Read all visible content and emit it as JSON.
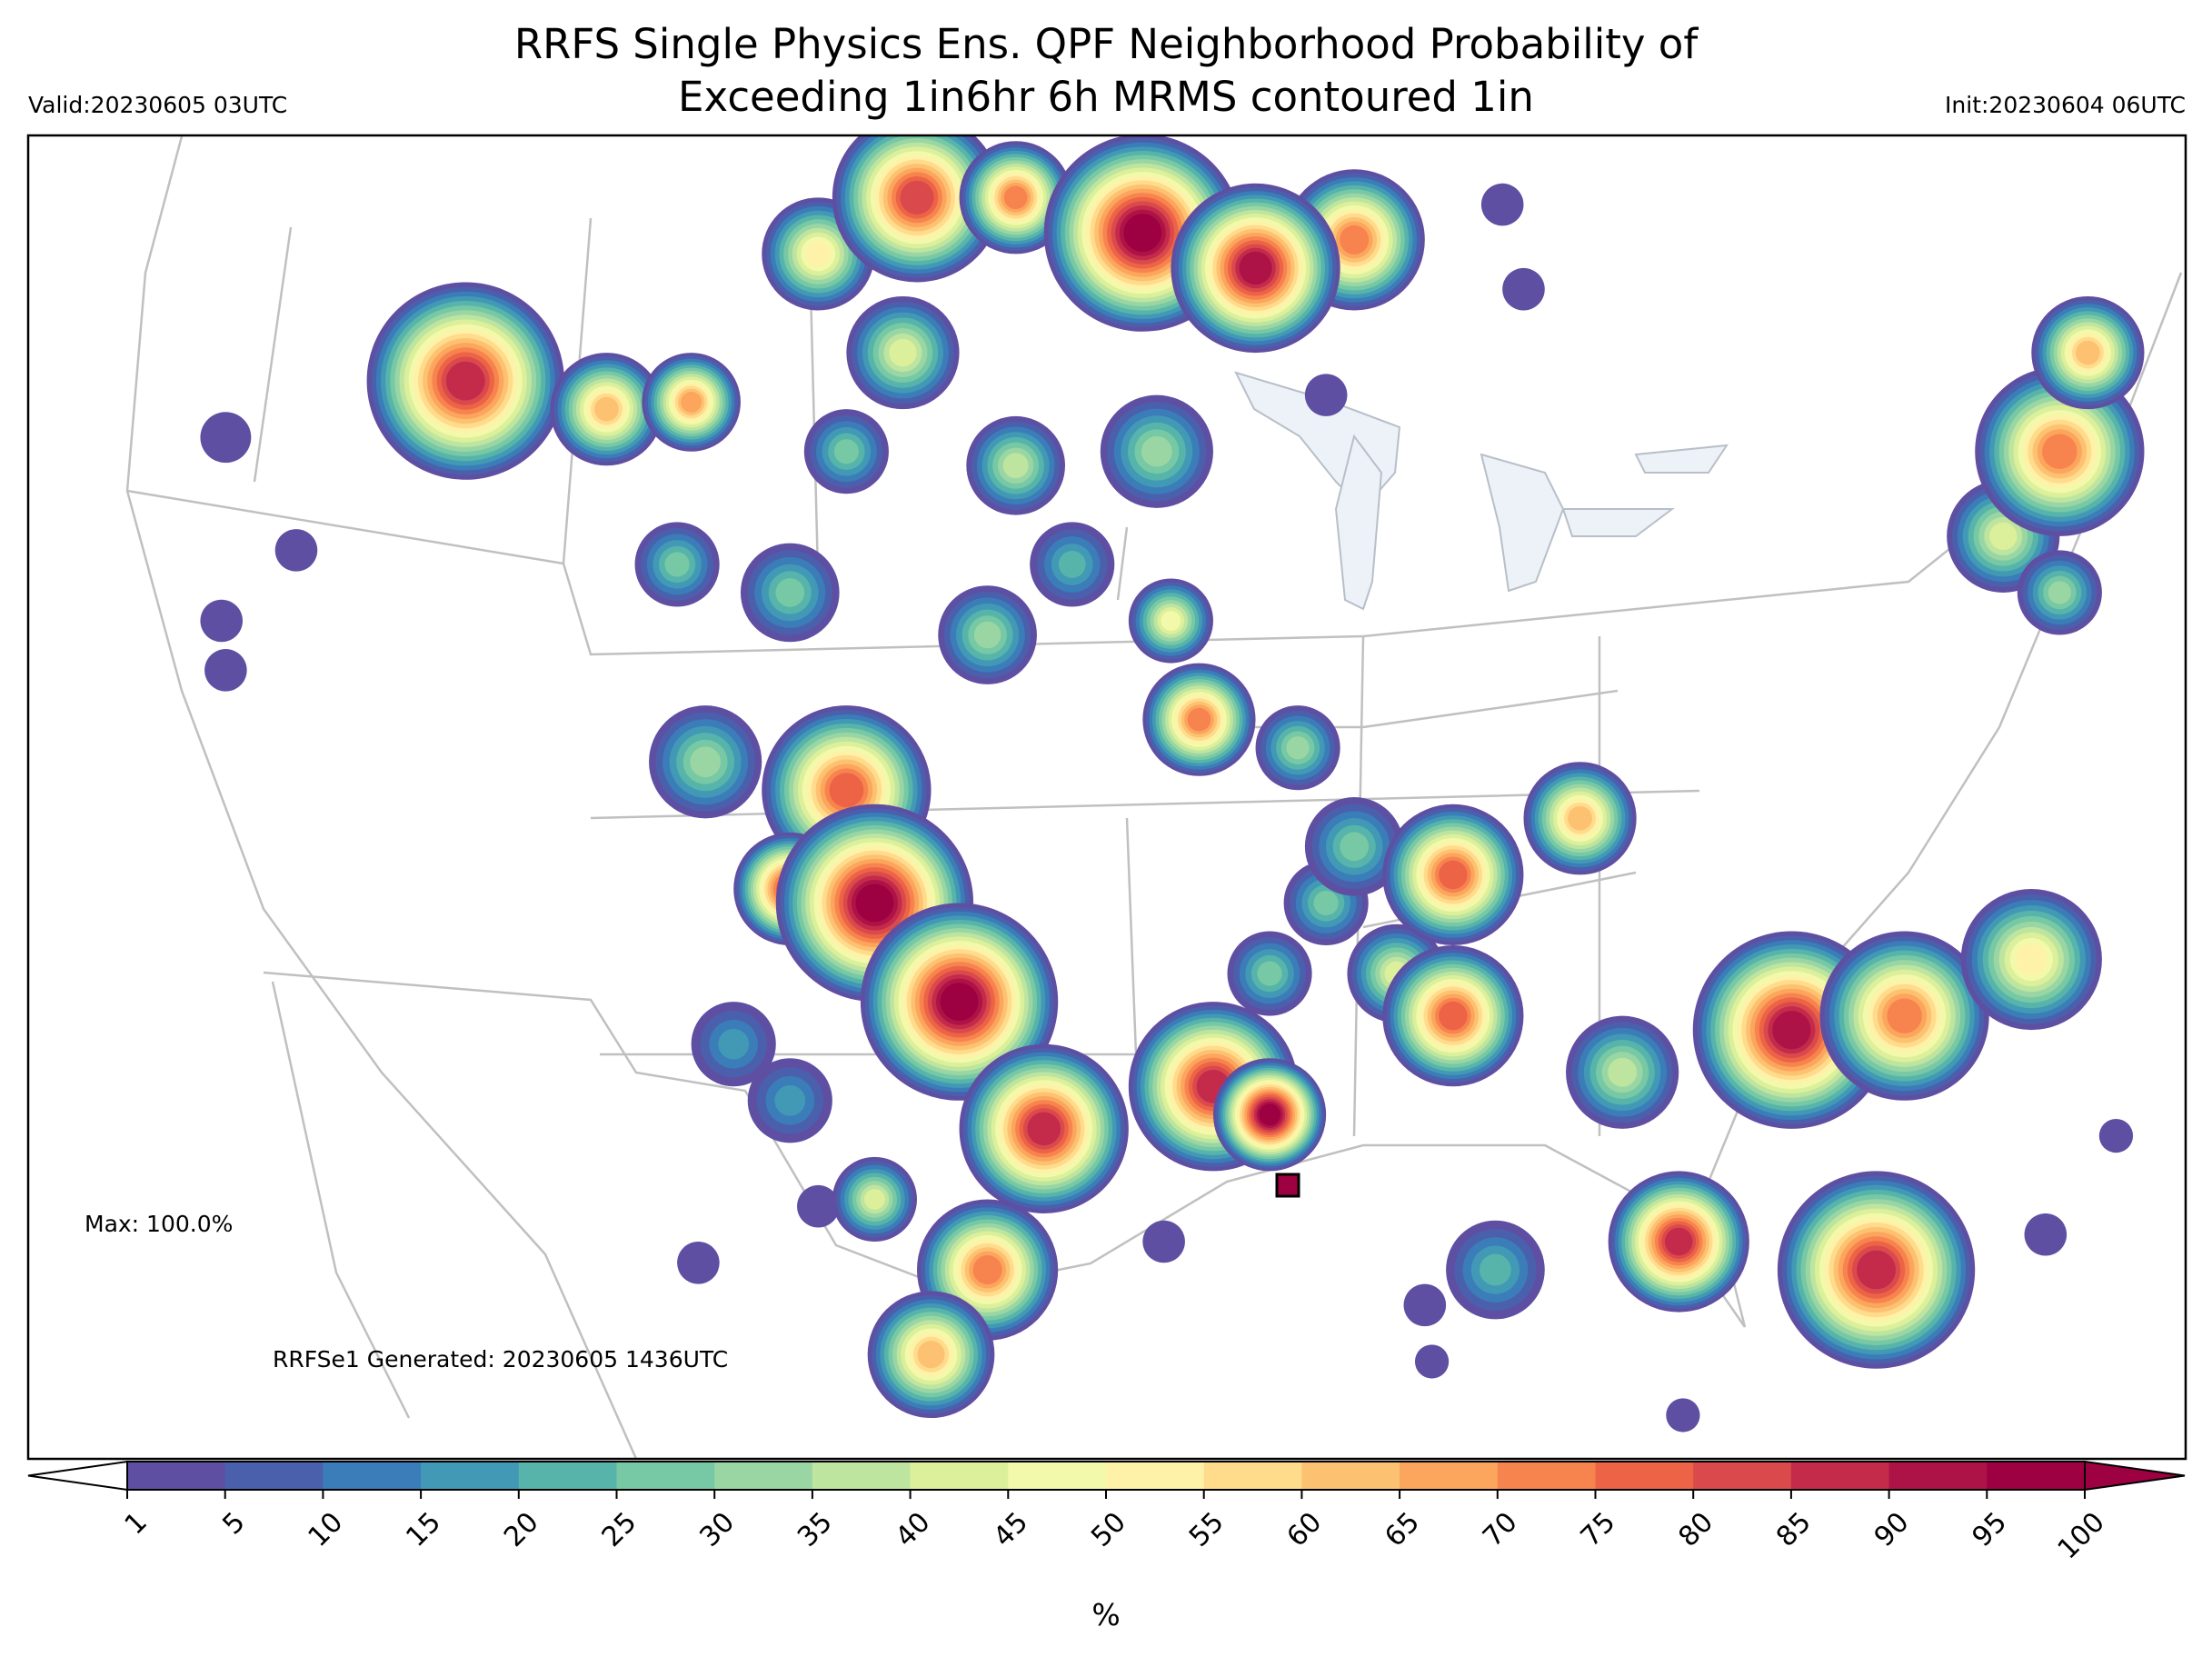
{
  "title_line1": "RRFS Single Physics Ens. QPF Neighborhood Probability of",
  "title_line2": "Exceeding 1in6hr 6h MRMS contoured 1in",
  "valid": "Valid:20230605 03UTC",
  "init": "Init:20230604 06UTC",
  "max_label": "Max: 100.0%",
  "generated": "RRFSe1 Generated: 20230605 1436UTC",
  "colorbar": {
    "label": "%",
    "ticks": [
      1,
      5,
      10,
      15,
      20,
      25,
      30,
      35,
      40,
      45,
      50,
      55,
      60,
      65,
      70,
      75,
      80,
      85,
      90,
      95,
      100
    ],
    "colors": [
      "#5e4fa2",
      "#4a60ad",
      "#3a7db8",
      "#4299b5",
      "#57b4ab",
      "#77c8a4",
      "#9ad6a4",
      "#bde5a0",
      "#dcf09b",
      "#f2f9aa",
      "#fef2a9",
      "#fedc8c",
      "#fdc172",
      "#fca55d",
      "#f7844e",
      "#ec6445",
      "#da4a4c",
      "#c42b4b",
      "#ad1346",
      "#9e0142"
    ],
    "under_color": "#ffffff"
  }
}
